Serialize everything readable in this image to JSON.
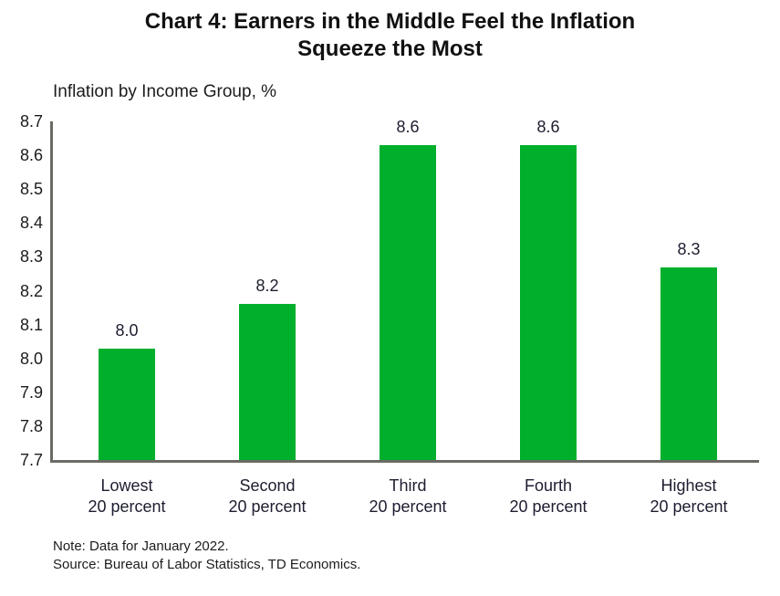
{
  "title": {
    "line1": "Chart 4: Earners in the Middle Feel the Inflation",
    "line2": "Squeeze the Most"
  },
  "subtitle": "Inflation by Income Group, %",
  "notes": {
    "note": "Note: Data for January 2022.",
    "source": "Source: Bureau of Labor Statistics, TD Economics."
  },
  "colors": {
    "bar": "#00AF2C",
    "axis": "#6b6b64",
    "text": "#1c1c1c"
  },
  "chart_data": {
    "type": "bar",
    "title": "Chart 4: Earners in the Middle Feel the Inflation Squeeze the Most",
    "axis_annotation": "Inflation by Income Group, %",
    "categories": [
      "Lowest 20 percent",
      "Second 20 percent",
      "Third 20 percent",
      "Fourth 20 percent",
      "Highest 20 percent"
    ],
    "category_lines": [
      [
        "Lowest",
        "20 percent"
      ],
      [
        "Second",
        "20 percent"
      ],
      [
        "Third",
        "20 percent"
      ],
      [
        "Fourth",
        "20 percent"
      ],
      [
        "Highest",
        "20 percent"
      ]
    ],
    "values": [
      8.03,
      8.16,
      8.63,
      8.63,
      8.27
    ],
    "data_labels": [
      "8.0",
      "8.2",
      "8.6",
      "8.6",
      "8.3"
    ],
    "xlabel": "",
    "ylabel": "",
    "ylim": [
      7.7,
      8.7
    ],
    "ytick_step": 0.1,
    "yticks": [
      "8.7",
      "8.6",
      "8.5",
      "8.4",
      "8.3",
      "8.2",
      "8.1",
      "8.0",
      "7.9",
      "7.8",
      "7.7"
    ],
    "grid": false,
    "legend_position": "none",
    "bar_color": "#00AF2C"
  }
}
